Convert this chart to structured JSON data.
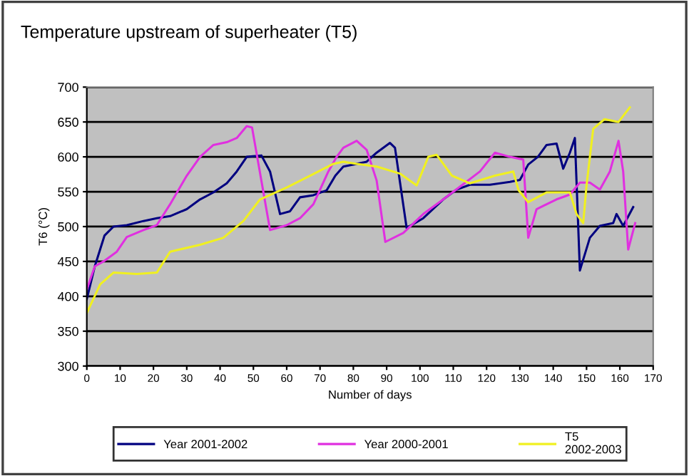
{
  "chart_data": {
    "type": "line",
    "title": "Temperature upstream of superheater (T5)",
    "xlabel": "Number of days",
    "ylabel": "T6 (°C)",
    "xlim": [
      0,
      170
    ],
    "xticks": [
      0,
      10,
      20,
      30,
      40,
      50,
      60,
      70,
      80,
      90,
      100,
      110,
      120,
      130,
      140,
      150,
      160,
      170
    ],
    "ylim": [
      300,
      700
    ],
    "yticks": [
      300,
      350,
      400,
      450,
      500,
      550,
      600,
      650,
      700
    ],
    "grid": "y",
    "legend": "bottom",
    "marker": "none",
    "line_style": "solid",
    "series": [
      {
        "name": "Year 2001-2002",
        "color": "#000080",
        "x": [
          0,
          2.4,
          5.3,
          8,
          12,
          17,
          21,
          25,
          30,
          34,
          38,
          42,
          45,
          48,
          52.4,
          55,
          58,
          61,
          64,
          68,
          72,
          74.6,
          77,
          81,
          84,
          87,
          91,
          92.5,
          96,
          101,
          107,
          111,
          115,
          121,
          127,
          130,
          132.5,
          135.4,
          138,
          141,
          143,
          145,
          146.5,
          148,
          151,
          154,
          158,
          159,
          161,
          164
        ],
        "values": [
          396,
          443,
          487,
          500,
          502,
          508,
          512,
          515,
          525,
          539,
          549,
          562,
          579,
          600,
          602,
          579,
          518,
          522,
          542,
          545,
          552,
          573,
          586,
          590,
          593,
          606,
          620,
          613,
          498,
          512,
          539,
          553,
          560,
          560,
          564,
          567,
          589,
          600,
          617,
          619,
          583,
          606,
          627,
          437,
          484,
          501,
          505,
          518,
          501,
          528
        ]
      },
      {
        "name": "Year 2000-2001",
        "color": "#e030e0",
        "x": [
          0,
          2.4,
          5,
          9,
          12,
          17,
          21,
          25,
          30,
          34,
          38,
          42,
          45,
          48,
          49.6,
          55,
          60,
          64,
          68,
          72.5,
          75,
          77,
          81,
          84,
          87,
          89.6,
          95,
          101,
          107,
          112.5,
          118,
          122.5,
          127,
          131,
          132.5,
          135,
          141,
          145,
          148,
          151,
          154,
          157,
          159.6,
          161,
          162.5,
          164.6
        ],
        "values": [
          410,
          443,
          450,
          464,
          485,
          495,
          502,
          532,
          573,
          600,
          617,
          621,
          627,
          644,
          642,
          495,
          502,
          512,
          532,
          579,
          600,
          613,
          623,
          610,
          566,
          478,
          491,
          518,
          539,
          559,
          579,
          606,
          600,
          596,
          484,
          525,
          539,
          546,
          563,
          563,
          553,
          579,
          623,
          579,
          467,
          505
        ]
      },
      {
        "name": "T5\n2002-2003",
        "color": "#f0f020",
        "x": [
          0,
          4,
          8,
          15,
          21,
          25,
          34,
          41,
          47,
          52,
          60,
          67,
          74,
          77,
          81,
          87,
          94,
          99,
          102.5,
          105,
          109.6,
          115,
          122.5,
          128,
          129.6,
          132.5,
          138,
          145,
          147,
          149,
          150,
          152,
          155.4,
          159.6,
          163
        ],
        "values": [
          376,
          417,
          434,
          432,
          434,
          464,
          474,
          484,
          508,
          539,
          556,
          573,
          590,
          593,
          590,
          586,
          576,
          559,
          600,
          603,
          573,
          562,
          573,
          579,
          552,
          535,
          549,
          549,
          518,
          505,
          559,
          640,
          654,
          650,
          671
        ]
      }
    ]
  }
}
